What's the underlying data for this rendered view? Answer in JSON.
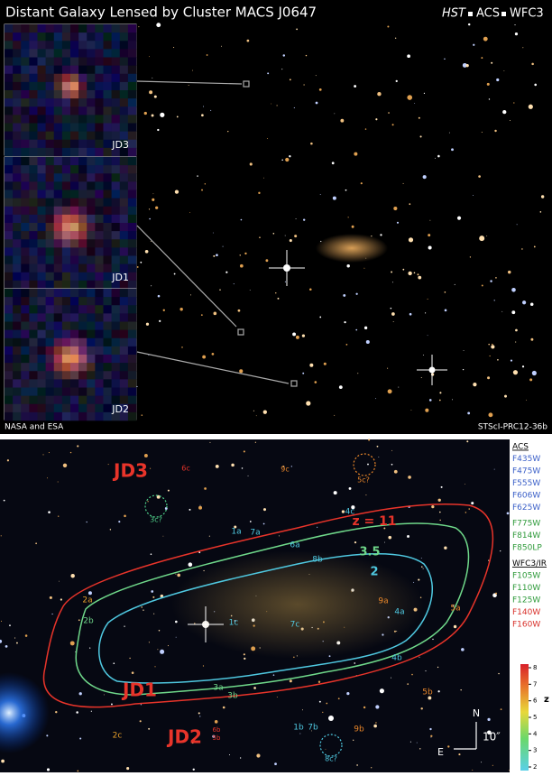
{
  "header": {
    "title": "Distant Galaxy Lensed by Cluster MACS J0647",
    "instruments": [
      "HST",
      "ACS",
      "WFC3"
    ]
  },
  "insets": [
    {
      "label": "JD3"
    },
    {
      "label": "JD1"
    },
    {
      "label": "JD2"
    }
  ],
  "credits": {
    "left": "NASA and ESA",
    "right": "STScI-PRC12-36b"
  },
  "lower_panel": {
    "labels": [
      {
        "text": "JD3",
        "color": "#e8342a"
      },
      {
        "text": "6c",
        "color": "#e8342a"
      },
      {
        "text": "9c",
        "color": "#e8862a"
      },
      {
        "text": "5c?",
        "color": "#e8862a"
      },
      {
        "text": "3c?",
        "color": "#4fd08a"
      },
      {
        "text": "z = 11",
        "color": "#e8342a"
      },
      {
        "text": "3.5",
        "color": "#6fd88a"
      },
      {
        "text": "2",
        "color": "#4fc8e0"
      },
      {
        "text": "1a",
        "color": "#4fc8e0"
      },
      {
        "text": "7a",
        "color": "#4fc8e0"
      },
      {
        "text": "4c",
        "color": "#4fc8e0"
      },
      {
        "text": "6a",
        "color": "#4fc8e0"
      },
      {
        "text": "8b",
        "color": "#4fc8e0"
      },
      {
        "text": "2a",
        "color": "#e8a02a"
      },
      {
        "text": "2b",
        "color": "#6fd88a"
      },
      {
        "text": "1c",
        "color": "#4fc8e0"
      },
      {
        "text": "7c",
        "color": "#4fc8e0"
      },
      {
        "text": "9a",
        "color": "#e8862a"
      },
      {
        "text": "5a",
        "color": "#e8862a"
      },
      {
        "text": "4a",
        "color": "#4fc8e0"
      },
      {
        "text": "4b",
        "color": "#4fc8e0"
      },
      {
        "text": "3a",
        "color": "#6fd88a"
      },
      {
        "text": "3b",
        "color": "#6fd88a"
      },
      {
        "text": "JD1",
        "color": "#e8342a"
      },
      {
        "text": "JD2",
        "color": "#e8342a"
      },
      {
        "text": "6b",
        "color": "#e8342a"
      },
      {
        "text": "5b",
        "color": "#e8342a"
      },
      {
        "text": "5b",
        "color": "#e8862a"
      },
      {
        "text": "2c",
        "color": "#e8a02a"
      },
      {
        "text": "1b",
        "color": "#4fc8e0"
      },
      {
        "text": "7b",
        "color": "#4fc8e0"
      },
      {
        "text": "9b",
        "color": "#e8862a"
      },
      {
        "text": "8c?",
        "color": "#4fc8e0"
      }
    ],
    "compass": {
      "north": "N",
      "east": "E",
      "scale": "10″"
    }
  },
  "legend": {
    "groups": [
      {
        "title": "ACS",
        "filters": [
          {
            "name": "F435W",
            "color": "#3a5fc8"
          },
          {
            "name": "F475W",
            "color": "#3a5fc8"
          },
          {
            "name": "F555W",
            "color": "#3a5fc8"
          },
          {
            "name": "F606W",
            "color": "#3a5fc8"
          },
          {
            "name": "F625W",
            "color": "#3a5fc8"
          },
          {
            "name": "F775W",
            "color": "#2e9a3a"
          },
          {
            "name": "F814W",
            "color": "#2e9a3a"
          },
          {
            "name": "F850LP",
            "color": "#2e9a3a"
          }
        ]
      },
      {
        "title": "WFC3/IR",
        "filters": [
          {
            "name": "F105W",
            "color": "#2e9a3a"
          },
          {
            "name": "F110W",
            "color": "#2e9a3a"
          },
          {
            "name": "F125W",
            "color": "#2e9a3a"
          },
          {
            "name": "F140W",
            "color": "#d8302a"
          },
          {
            "name": "F160W",
            "color": "#d8302a"
          }
        ]
      }
    ],
    "colorbar": {
      "label": "z",
      "ticks": [
        2,
        3,
        4,
        5,
        6,
        7,
        8
      ]
    }
  }
}
